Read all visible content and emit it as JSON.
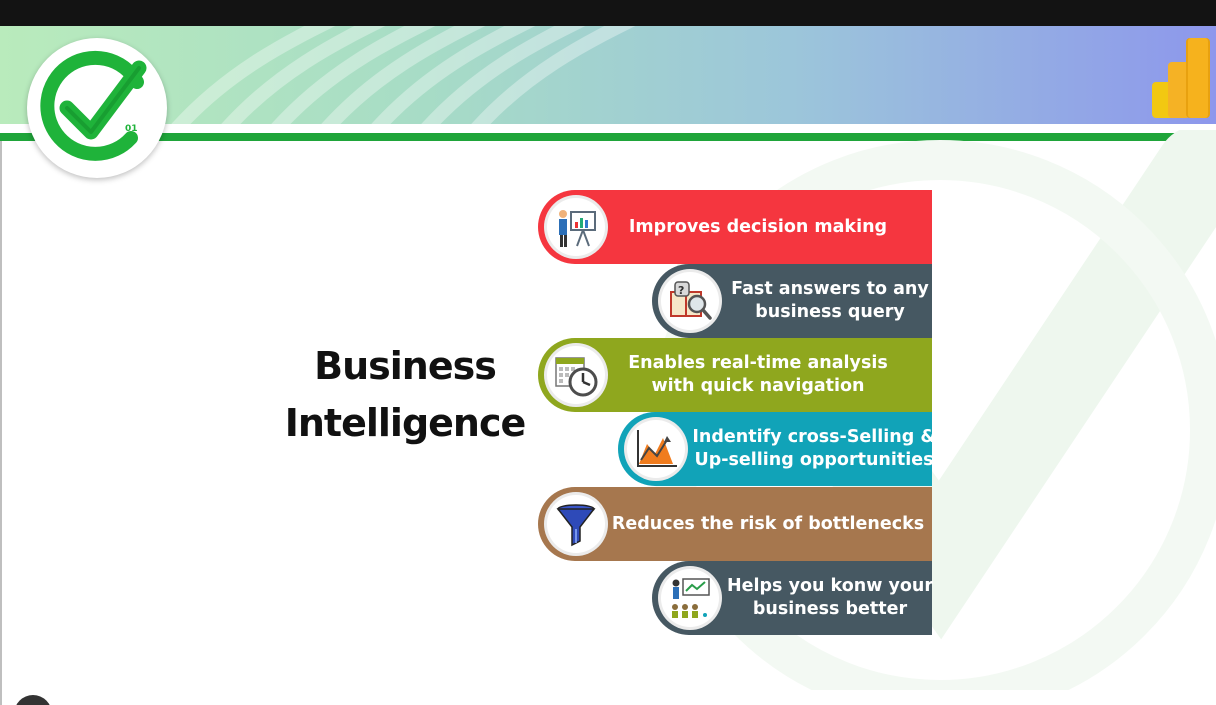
{
  "slide": {
    "title_line1": "Business",
    "title_line2": "Intelligence",
    "logo_text": "01",
    "items": [
      {
        "line1": "Improves decision making",
        "line2": "",
        "color": "#f5363f",
        "icon": "presenter-chart-icon"
      },
      {
        "line1": "Fast answers to any",
        "line2": "business query",
        "color": "#465862",
        "icon": "question-book-magnifier-icon"
      },
      {
        "line1": "Enables real-time analysis",
        "line2": "with quick navigation",
        "color": "#8fa71e",
        "icon": "calendar-clock-icon"
      },
      {
        "line1": "Indentify cross-Selling &",
        "line2": "Up-selling opportunities",
        "color": "#11a3b8",
        "icon": "growth-chart-icon"
      },
      {
        "line1": "Reduces the risk of bottlenecks",
        "line2": "",
        "color": "#a6774e",
        "icon": "funnel-icon"
      },
      {
        "line1": "Helps you konw your",
        "line2": "business better",
        "color": "#465862",
        "icon": "team-presentation-icon"
      }
    ]
  },
  "colors": {
    "header_green_line": "#1fa53a",
    "check_green": "#1fb33a"
  }
}
